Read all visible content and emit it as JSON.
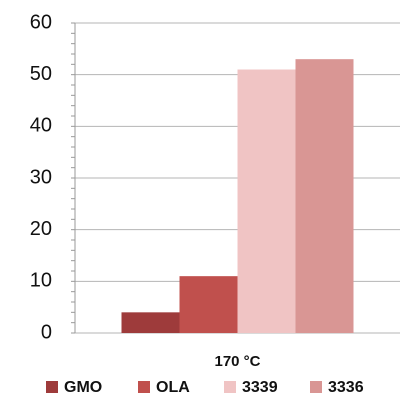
{
  "chart_data": {
    "type": "bar",
    "categories": [
      "170 °C"
    ],
    "series": [
      {
        "name": "GMO",
        "color": "#9e3b3b",
        "values": [
          4
        ]
      },
      {
        "name": "OLA",
        "color": "#c0504d",
        "values": [
          11
        ]
      },
      {
        "name": "3339",
        "color": "#f0c4c4",
        "values": [
          51
        ]
      },
      {
        "name": "3336",
        "color": "#d99694",
        "values": [
          53
        ]
      }
    ],
    "ylim": [
      0,
      60
    ],
    "yticks": [
      0,
      10,
      20,
      30,
      40,
      50,
      60
    ],
    "grid": true,
    "legend": "bottom"
  }
}
